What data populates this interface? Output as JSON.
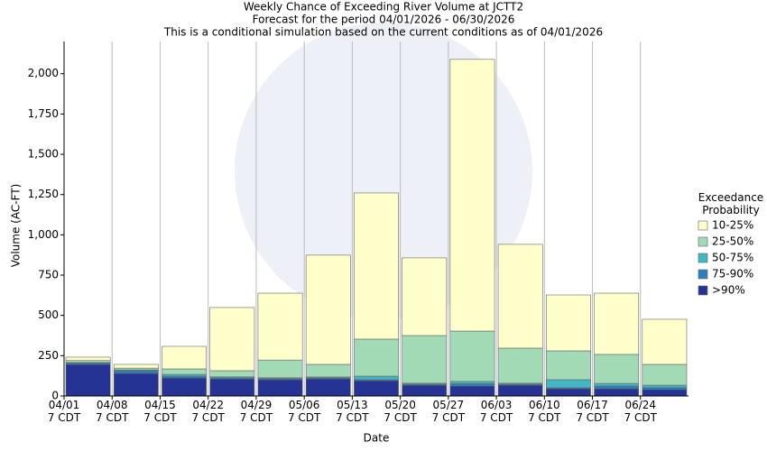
{
  "chart_data": {
    "type": "stacked_bar",
    "title": "Weekly Chance of Exceeding River Volume at JCTT2",
    "subtitle": "Forecast for the period 04/01/2026 - 06/30/2026",
    "note": "This is a conditional simulation based on the current conditions as of 04/01/2026",
    "x_label": "Date",
    "y_label": "Volume (AC-FT)",
    "legend_title": "Exceedance\nProbability",
    "categories": [
      "04/01\n7 CDT",
      "04/08\n7 CDT",
      "04/15\n7 CDT",
      "04/22\n7 CDT",
      "04/29\n7 CDT",
      "05/06\n7 CDT",
      "05/13\n7 CDT",
      "05/20\n7 CDT",
      "05/27\n7 CDT",
      "06/03\n7 CDT",
      "06/10\n7 CDT",
      "06/17\n7 CDT",
      "06/24\n7 CDT"
    ],
    "series": [
      {
        "name": "10-25%",
        "color": "#ffffcc",
        "values": [
          21,
          23,
          140,
          392,
          415,
          678,
          907,
          482,
          1686,
          644,
          347,
          380,
          280
        ]
      },
      {
        "name": "25-50%",
        "color": "#a1dab4",
        "values": [
          12,
          11,
          34,
          38,
          110,
          78,
          230,
          296,
          313,
          218,
          179,
          180,
          129
        ]
      },
      {
        "name": "50-75%",
        "color": "#41b6c4",
        "values": [
          4,
          5,
          11,
          6,
          6,
          6,
          22,
          6,
          14,
          6,
          50,
          16,
          15
        ]
      },
      {
        "name": "75-90%",
        "color": "#2c7fb8",
        "values": [
          8,
          17,
          11,
          7,
          6,
          6,
          6,
          6,
          14,
          6,
          6,
          17,
          12
        ]
      },
      {
        "name": ">90%",
        "color": "#253494",
        "values": [
          196,
          140,
          112,
          106,
          101,
          106,
          95,
          67,
          62,
          67,
          45,
          45,
          40
        ]
      }
    ],
    "ylim": [
      0,
      2200
    ],
    "yticks": [
      0,
      250,
      500,
      750,
      {
        "value": 1000,
        "label": "1,000"
      },
      {
        "value": 1250,
        "label": "1,250"
      },
      {
        "value": 1500,
        "label": "1,500"
      },
      {
        "value": 1750,
        "label": "1,750"
      },
      {
        "value": 2000,
        "label": "2,000"
      }
    ],
    "grid": true,
    "legend": "right"
  }
}
